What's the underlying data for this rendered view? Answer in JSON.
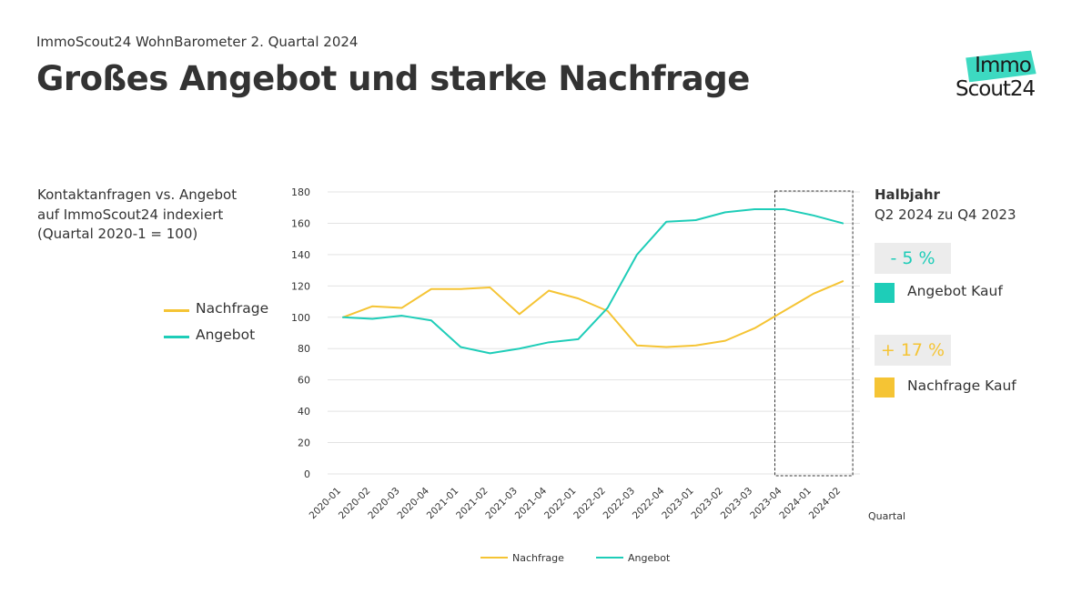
{
  "header": {
    "subtitle": "ImmoScout24 WohnBarometer 2. Quartal 2024",
    "title": "Großes Angebot und starke Nachfrage"
  },
  "logo": {
    "line1": "Immo",
    "line2": "Scout24",
    "badge_color": "#3dd9c1"
  },
  "description": {
    "lines": [
      "Kontaktanfragen vs. Angebot",
      "auf ImmoScout24 indexiert",
      "(Quartal 2020-1 = 100)"
    ]
  },
  "colors": {
    "nachfrage": "#f5c434",
    "angebot": "#1ecdb8",
    "text": "#333333"
  },
  "side_legend": {
    "items": [
      {
        "label": "Nachfrage",
        "color": "#f5c434"
      },
      {
        "label": "Angebot",
        "color": "#1ecdb8"
      }
    ]
  },
  "chart_data": {
    "type": "line",
    "x": [
      "2020-01",
      "2020-02",
      "2020-03",
      "2020-04",
      "2021-01",
      "2021-02",
      "2021-03",
      "2021-04",
      "2022-01",
      "2022-02",
      "2022-03",
      "2022-04",
      "2023-01",
      "2023-02",
      "2023-03",
      "2023-04",
      "2024-01",
      "2024-02"
    ],
    "series": [
      {
        "name": "Nachfrage",
        "values": [
          100,
          107,
          106,
          118,
          118,
          119,
          102,
          117,
          112,
          104,
          82,
          81,
          82,
          85,
          93,
          104,
          115,
          123
        ]
      },
      {
        "name": "Angebot",
        "values": [
          100,
          99,
          101,
          98,
          81,
          77,
          80,
          84,
          86,
          106,
          140,
          161,
          162,
          167,
          169,
          169,
          165,
          160
        ]
      }
    ],
    "ylim": [
      0,
      180
    ],
    "yticks": [
      0,
      20,
      40,
      60,
      80,
      100,
      120,
      140,
      160,
      180
    ],
    "xlabel": "Quartal",
    "ylabel": "",
    "grid": true,
    "legend": "bottom",
    "highlight_range": [
      "2023-04",
      "2024-02"
    ]
  },
  "panel": {
    "heading": "Halbjahr",
    "subheading": "Q2 2024 zu Q4 2023",
    "angebot_pct": "- 5 %",
    "angebot_label": "Angebot Kauf",
    "nachfrage_pct": "+ 17 %",
    "nachfrage_label": "Nachfrage Kauf"
  }
}
